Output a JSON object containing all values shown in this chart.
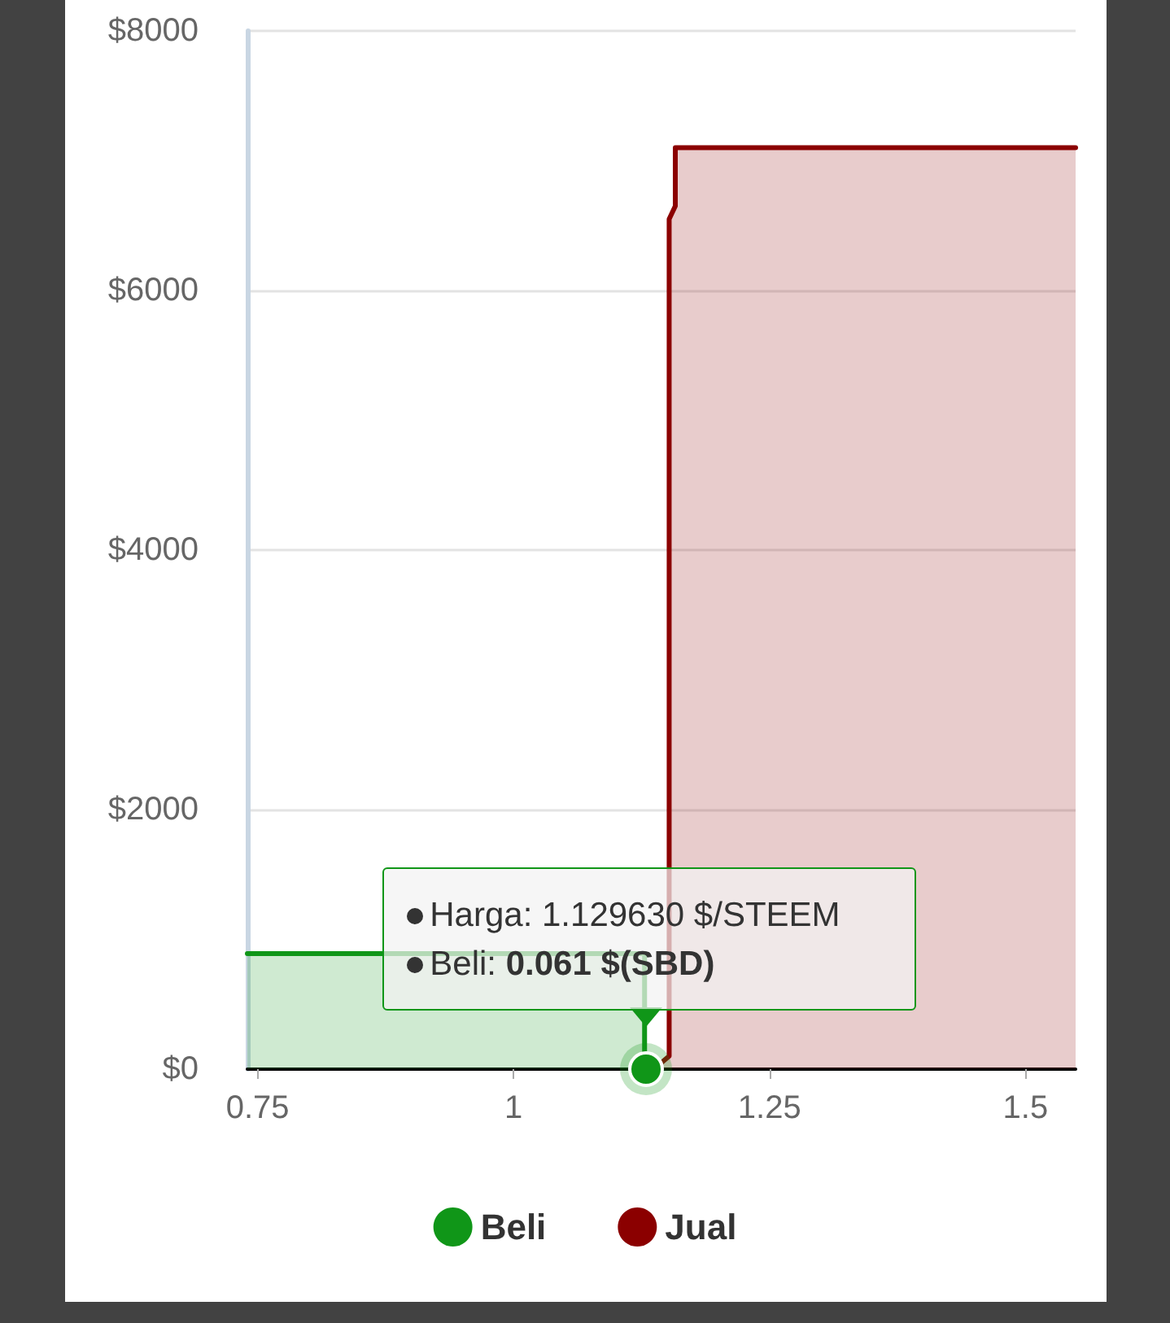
{
  "chart_data": {
    "type": "area",
    "xlim": [
      0.74,
      1.549
    ],
    "xticks": [
      0.75,
      1,
      1.25,
      1.5
    ],
    "ylim": [
      0,
      8000
    ],
    "yticks": [
      {
        "value": 0,
        "label": "$0"
      },
      {
        "value": 2000,
        "label": "$2000"
      },
      {
        "value": 4000,
        "label": "$4000"
      },
      {
        "value": 6000,
        "label": "$6000"
      },
      {
        "value": 8000,
        "label": "$8000"
      }
    ],
    "grid": "y",
    "legend": "bottom",
    "marker": "none",
    "line_style": "solid",
    "series": [
      {
        "name": "Beli",
        "color": "#109618",
        "x": [
          0.74,
          1.128,
          1.128,
          1.12963
        ],
        "values": [
          890,
          890,
          60,
          0
        ]
      },
      {
        "name": "Jual",
        "color": "#8b0000",
        "x": [
          1.137,
          1.152,
          1.152,
          1.155,
          1.158,
          1.158,
          1.549
        ],
        "values": [
          0,
          100,
          6550,
          6600,
          6650,
          7100,
          7100
        ]
      }
    ],
    "annotations": [
      "Harga: 1.129630 $/STEEM",
      "Beli: 0.061 $(SBD)"
    ]
  }
}
